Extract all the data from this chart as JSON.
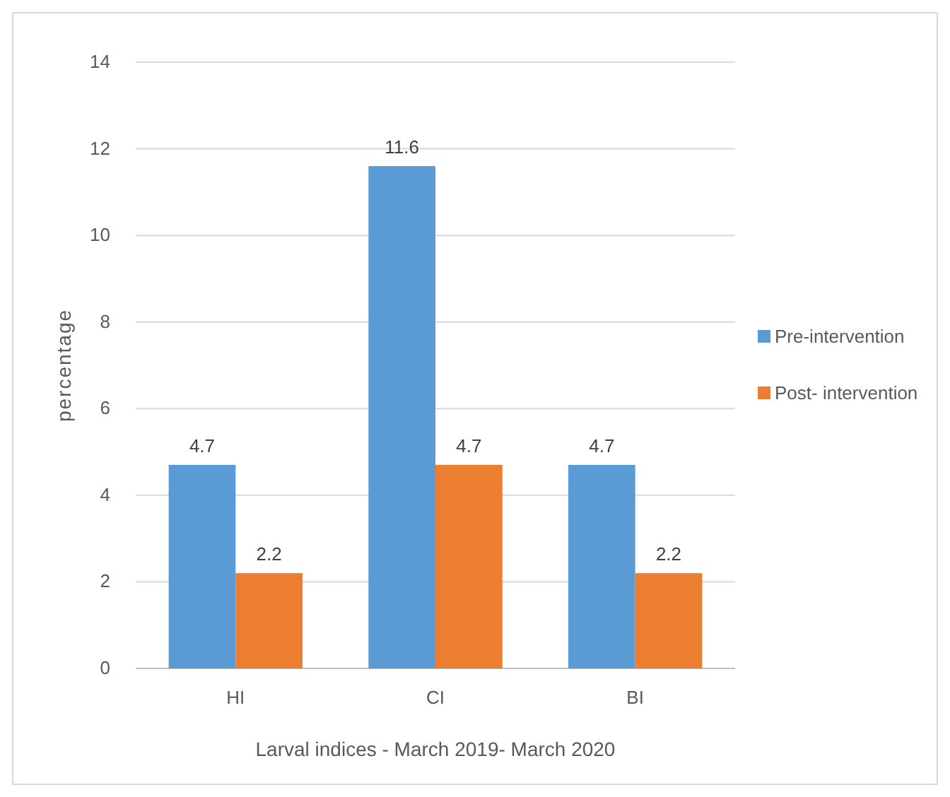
{
  "chart_data": {
    "type": "bar",
    "xlabel": "Larval indices - March 2019- March 2020",
    "ylabel": "percentage",
    "categories": [
      "HI",
      "CI",
      "BI"
    ],
    "series": [
      {
        "name": "Pre-intervention",
        "color": "#5b9bd5",
        "values": [
          4.7,
          11.6,
          4.7
        ]
      },
      {
        "name": "Post- intervention",
        "color": "#ed7d31",
        "values": [
          2.2,
          4.7,
          2.2
        ]
      }
    ],
    "ylim": [
      0,
      14
    ],
    "yticks": [
      0,
      2,
      4,
      6,
      8,
      10,
      12,
      14
    ],
    "grid": "y",
    "legend": "right",
    "data_labels": true
  }
}
